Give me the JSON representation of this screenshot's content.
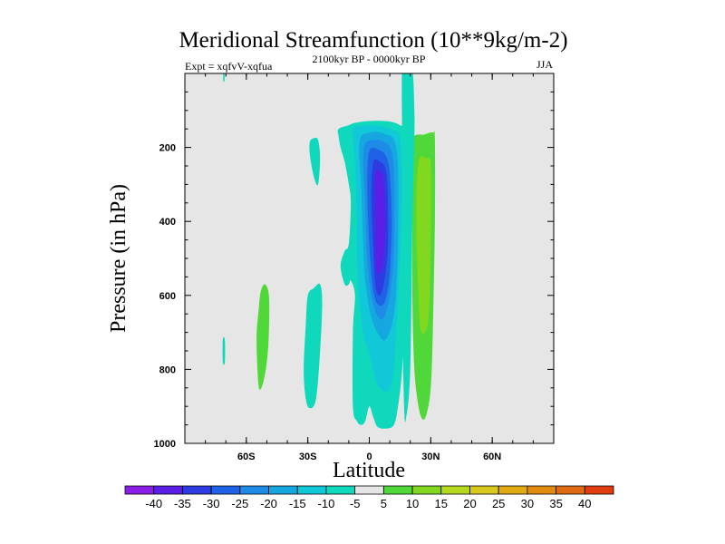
{
  "chart_data": {
    "type": "heatmap",
    "title": "Meridional Streamfunction (10**9kg/m-2)",
    "left_label": "Expt = xqfvV-xqfua",
    "center_label": "2100kyr BP - 0000kyr BP",
    "right_label": "JJA",
    "xlabel": "Latitude",
    "ylabel": "Pressure (in hPa)",
    "xlim": [
      -90,
      90
    ],
    "ylim": [
      1000,
      0
    ],
    "x_ticks": [
      {
        "value": -60,
        "label": "60S"
      },
      {
        "value": -30,
        "label": "30S"
      },
      {
        "value": 0,
        "label": "0"
      },
      {
        "value": 30,
        "label": "30N"
      },
      {
        "value": 60,
        "label": "60N"
      }
    ],
    "y_ticks": [
      {
        "value": 200,
        "label": "200"
      },
      {
        "value": 400,
        "label": "400"
      },
      {
        "value": 600,
        "label": "600"
      },
      {
        "value": 800,
        "label": "800"
      },
      {
        "value": 1000,
        "label": "1000"
      }
    ],
    "background_color": "#e6e6e6",
    "colorbar": {
      "levels": [
        -40,
        -35,
        -30,
        -25,
        -20,
        -15,
        -10,
        -5,
        5,
        10,
        15,
        20,
        25,
        30,
        35,
        40
      ],
      "labels": [
        "-40",
        "-35",
        "-30",
        "-25",
        "-20",
        "-15",
        "-10",
        "-5",
        "5",
        "10",
        "15",
        "20",
        "25",
        "30",
        "35",
        "40"
      ],
      "colors": [
        "#8a1ee6",
        "#5a1ee6",
        "#2e3be0",
        "#1f62e6",
        "#1e8ce6",
        "#16a6e0",
        "#10c8d8",
        "#10d8bc",
        "#e6e6e6",
        "#50d83a",
        "#82d81e",
        "#b4d81e",
        "#d8c81e",
        "#e0aa10",
        "#e08a10",
        "#e06a10",
        "#e03c10"
      ]
    },
    "regions": [
      {
        "name": "band-neg-5",
        "color": "#10d8bc",
        "lat": [
          -15,
          -10,
          -8,
          -3,
          3,
          10,
          15,
          18,
          20,
          18,
          16,
          14,
          12,
          8,
          4,
          2,
          0,
          -2,
          -4,
          -6,
          -8,
          -8,
          -7,
          -9,
          -10,
          -12,
          -14,
          -12,
          -10,
          -9,
          -10,
          -12,
          -14,
          -15
        ],
        "p": [
          150,
          140,
          135,
          130,
          128,
          130,
          140,
          160,
          300,
          600,
          800,
          900,
          950,
          960,
          955,
          930,
          900,
          940,
          950,
          940,
          900,
          700,
          600,
          560,
          570,
          570,
          520,
          480,
          460,
          350,
          300,
          240,
          200,
          170
        ]
      },
      {
        "name": "band-neg-10",
        "color": "#10c8d8",
        "lat": [
          -8,
          -4,
          0,
          4,
          8,
          12,
          15,
          16,
          15,
          13,
          12,
          10,
          8,
          4,
          0,
          -3,
          -5,
          -6,
          -6,
          -7,
          -8
        ],
        "p": [
          150,
          142,
          140,
          142,
          145,
          155,
          175,
          300,
          500,
          700,
          800,
          850,
          860,
          840,
          760,
          700,
          600,
          500,
          400,
          250,
          180
        ]
      },
      {
        "name": "band-neg-15",
        "color": "#16a6e0",
        "lat": [
          -4,
          0,
          4,
          8,
          12,
          14,
          14,
          13,
          11,
          8,
          5,
          1,
          -2,
          -3,
          -4,
          -5
        ],
        "p": [
          170,
          160,
          158,
          165,
          180,
          250,
          450,
          600,
          680,
          720,
          710,
          660,
          560,
          450,
          300,
          210
        ]
      },
      {
        "name": "band-neg-20",
        "color": "#1e8ce6",
        "lat": [
          -2,
          2,
          6,
          10,
          12,
          12,
          10,
          7,
          4,
          1,
          -1,
          -2,
          -3
        ],
        "p": [
          190,
          180,
          182,
          200,
          260,
          480,
          600,
          660,
          655,
          600,
          500,
          350,
          240
        ]
      },
      {
        "name": "band-neg-25",
        "color": "#1f62e6",
        "lat": [
          0,
          4,
          8,
          10,
          11,
          10,
          8,
          5,
          2,
          0,
          -1
        ],
        "p": [
          210,
          205,
          222,
          270,
          400,
          540,
          610,
          628,
          590,
          460,
          300
        ]
      },
      {
        "name": "band-neg-30",
        "color": "#2e3be0",
        "lat": [
          2,
          5,
          8,
          9,
          9,
          7,
          5,
          3,
          2,
          1
        ],
        "p": [
          240,
          238,
          260,
          330,
          480,
          570,
          600,
          575,
          480,
          330
        ]
      },
      {
        "name": "band-neg-35",
        "color": "#5a1ee6",
        "lat": [
          3,
          6,
          7,
          8,
          7,
          6,
          4,
          3,
          3
        ],
        "p": [
          270,
          270,
          300,
          400,
          490,
          530,
          540,
          490,
          380
        ]
      },
      {
        "name": "cell-nh-5",
        "color": "#50d83a",
        "lat": [
          21,
          27,
          31,
          32,
          32,
          31,
          30,
          28,
          26,
          24,
          22,
          21,
          21
        ],
        "p": [
          180,
          165,
          160,
          180,
          400,
          700,
          850,
          920,
          935,
          900,
          800,
          600,
          300
        ]
      },
      {
        "name": "cell-nh-10",
        "color": "#82d81e",
        "lat": [
          24,
          28,
          30,
          30,
          29,
          27,
          25,
          24,
          23
        ],
        "p": [
          240,
          230,
          250,
          450,
          650,
          700,
          690,
          600,
          400
        ]
      },
      {
        "name": "jet-nh-5",
        "color": "#10d8bc",
        "lat": [
          16,
          18,
          21,
          22,
          22,
          21,
          20,
          18,
          17,
          16,
          16
        ],
        "p": [
          -10,
          -10,
          -10,
          100,
          180,
          400,
          800,
          930,
          900,
          600,
          200
        ]
      },
      {
        "name": "pocket-sh-neg5-a",
        "color": "#10d8bc",
        "lat": [
          -30,
          -27,
          -24,
          -23,
          -24,
          -26,
          -29,
          -31,
          -32,
          -31
        ],
        "p": [
          600,
          580,
          570,
          620,
          750,
          880,
          905,
          880,
          800,
          680
        ]
      },
      {
        "name": "pocket-sh-neg5-b",
        "color": "#10d8bc",
        "lat": [
          -29,
          -27,
          -25,
          -24,
          -25,
          -27,
          -29
        ],
        "p": [
          185,
          175,
          180,
          230,
          300,
          280,
          220
        ]
      },
      {
        "name": "pocket-sh-5",
        "color": "#50d83a",
        "lat": [
          -53,
          -51,
          -49,
          -49,
          -50,
          -52,
          -54,
          -55,
          -54
        ],
        "p": [
          590,
          570,
          600,
          700,
          780,
          840,
          845,
          720,
          640
        ]
      },
      {
        "name": "sliver-sh-neg5",
        "color": "#10d8bc",
        "lat": [
          -71.5,
          -70.5,
          -70.5,
          -71.5
        ],
        "p": [
          720,
          720,
          780,
          780
        ]
      },
      {
        "name": "sliver-top-neg5",
        "color": "#10d8bc",
        "lat": [
          -71.3,
          -70.7,
          -70.7,
          -71.3
        ],
        "p": [
          0,
          0,
          20,
          20
        ]
      }
    ]
  }
}
